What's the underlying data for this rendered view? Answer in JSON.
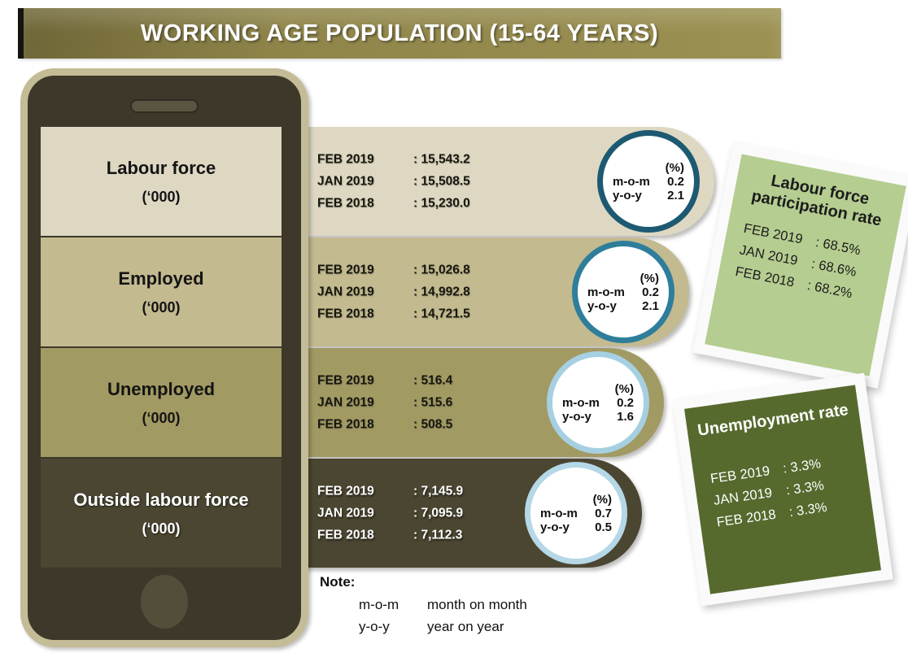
{
  "header": {
    "title": "WORKING AGE POPULATION (15-64 YEARS)"
  },
  "rows": [
    {
      "label": "Labour force",
      "unit": "(‘000)",
      "entries": [
        {
          "period": "FEB 2019",
          "value": ": 15,543.2"
        },
        {
          "period": "JAN 2019",
          "value": ": 15,508.5"
        },
        {
          "period": "FEB 2018",
          "value": ": 15,230.0"
        }
      ],
      "circle": {
        "unit_label": "(%)",
        "mom_label": "m-o-m",
        "mom_value": "0.2",
        "yoy_label": "y-o-y",
        "yoy_value": "2.1"
      }
    },
    {
      "label": "Employed",
      "unit": "(‘000)",
      "entries": [
        {
          "period": "FEB 2019",
          "value": ": 15,026.8"
        },
        {
          "period": "JAN 2019",
          "value": ": 14,992.8"
        },
        {
          "period": "FEB 2018",
          "value": ": 14,721.5"
        }
      ],
      "circle": {
        "unit_label": "(%)",
        "mom_label": "m-o-m",
        "mom_value": "0.2",
        "yoy_label": "y-o-y",
        "yoy_value": "2.1"
      }
    },
    {
      "label": "Unemployed",
      "unit": "(‘000)",
      "entries": [
        {
          "period": "FEB 2019",
          "value": ": 516.4"
        },
        {
          "period": "JAN 2019",
          "value": ": 515.6"
        },
        {
          "period": "FEB 2018",
          "value": ": 508.5"
        }
      ],
      "circle": {
        "unit_label": "(%)",
        "mom_label": "m-o-m",
        "mom_value": "0.2",
        "yoy_label": "y-o-y",
        "yoy_value": "1.6"
      }
    },
    {
      "label": "Outside labour force",
      "unit": "(‘000)",
      "entries": [
        {
          "period": "FEB 2019",
          "value": ": 7,145.9"
        },
        {
          "period": "JAN 2019",
          "value": ": 7,095.9"
        },
        {
          "period": "FEB 2018",
          "value": ": 7,112.3"
        }
      ],
      "circle": {
        "unit_label": "(%)",
        "mom_label": "m-o-m",
        "mom_value": "0.7",
        "yoy_label": "y-o-y",
        "yoy_value": "0.5"
      }
    }
  ],
  "cards": [
    {
      "title": "Labour force participation rate",
      "entries": [
        {
          "period": "FEB 2019",
          "value": ": 68.5%"
        },
        {
          "period": "JAN 2019",
          "value": ": 68.6%"
        },
        {
          "period": "FEB 2018",
          "value": ": 68.2%"
        }
      ]
    },
    {
      "title": "Unemployment rate",
      "entries": [
        {
          "period": "FEB 2019",
          "value": ": 3.3%"
        },
        {
          "period": "JAN 2019",
          "value": ": 3.3%"
        },
        {
          "period": "FEB 2018",
          "value": ": 3.3%"
        }
      ]
    }
  ],
  "note": {
    "heading": "Note:",
    "definitions": [
      {
        "abbr": "m-o-m",
        "meaning": "month on month"
      },
      {
        "abbr": "y-o-y",
        "meaning": "year on year"
      }
    ]
  },
  "colors": {
    "title_bar": "#948a4e",
    "phone_frame": "#c4bc96",
    "phone_body": "#3d382a",
    "row_labour_force": "#ded8c3",
    "row_employed": "#c3ba90",
    "row_unemployed": "#a29a63",
    "row_outside_labour_force": "#4b4631",
    "circle_border_labour_force": "#1d5a71",
    "circle_border_employed": "#2e7e9b",
    "circle_border_unemployed": "#a6d0e2",
    "circle_border_outside_labour_force": "#b5d8e7",
    "card_participation_bg": "#b5cd90",
    "card_unemployment_bg": "#566a2e"
  }
}
